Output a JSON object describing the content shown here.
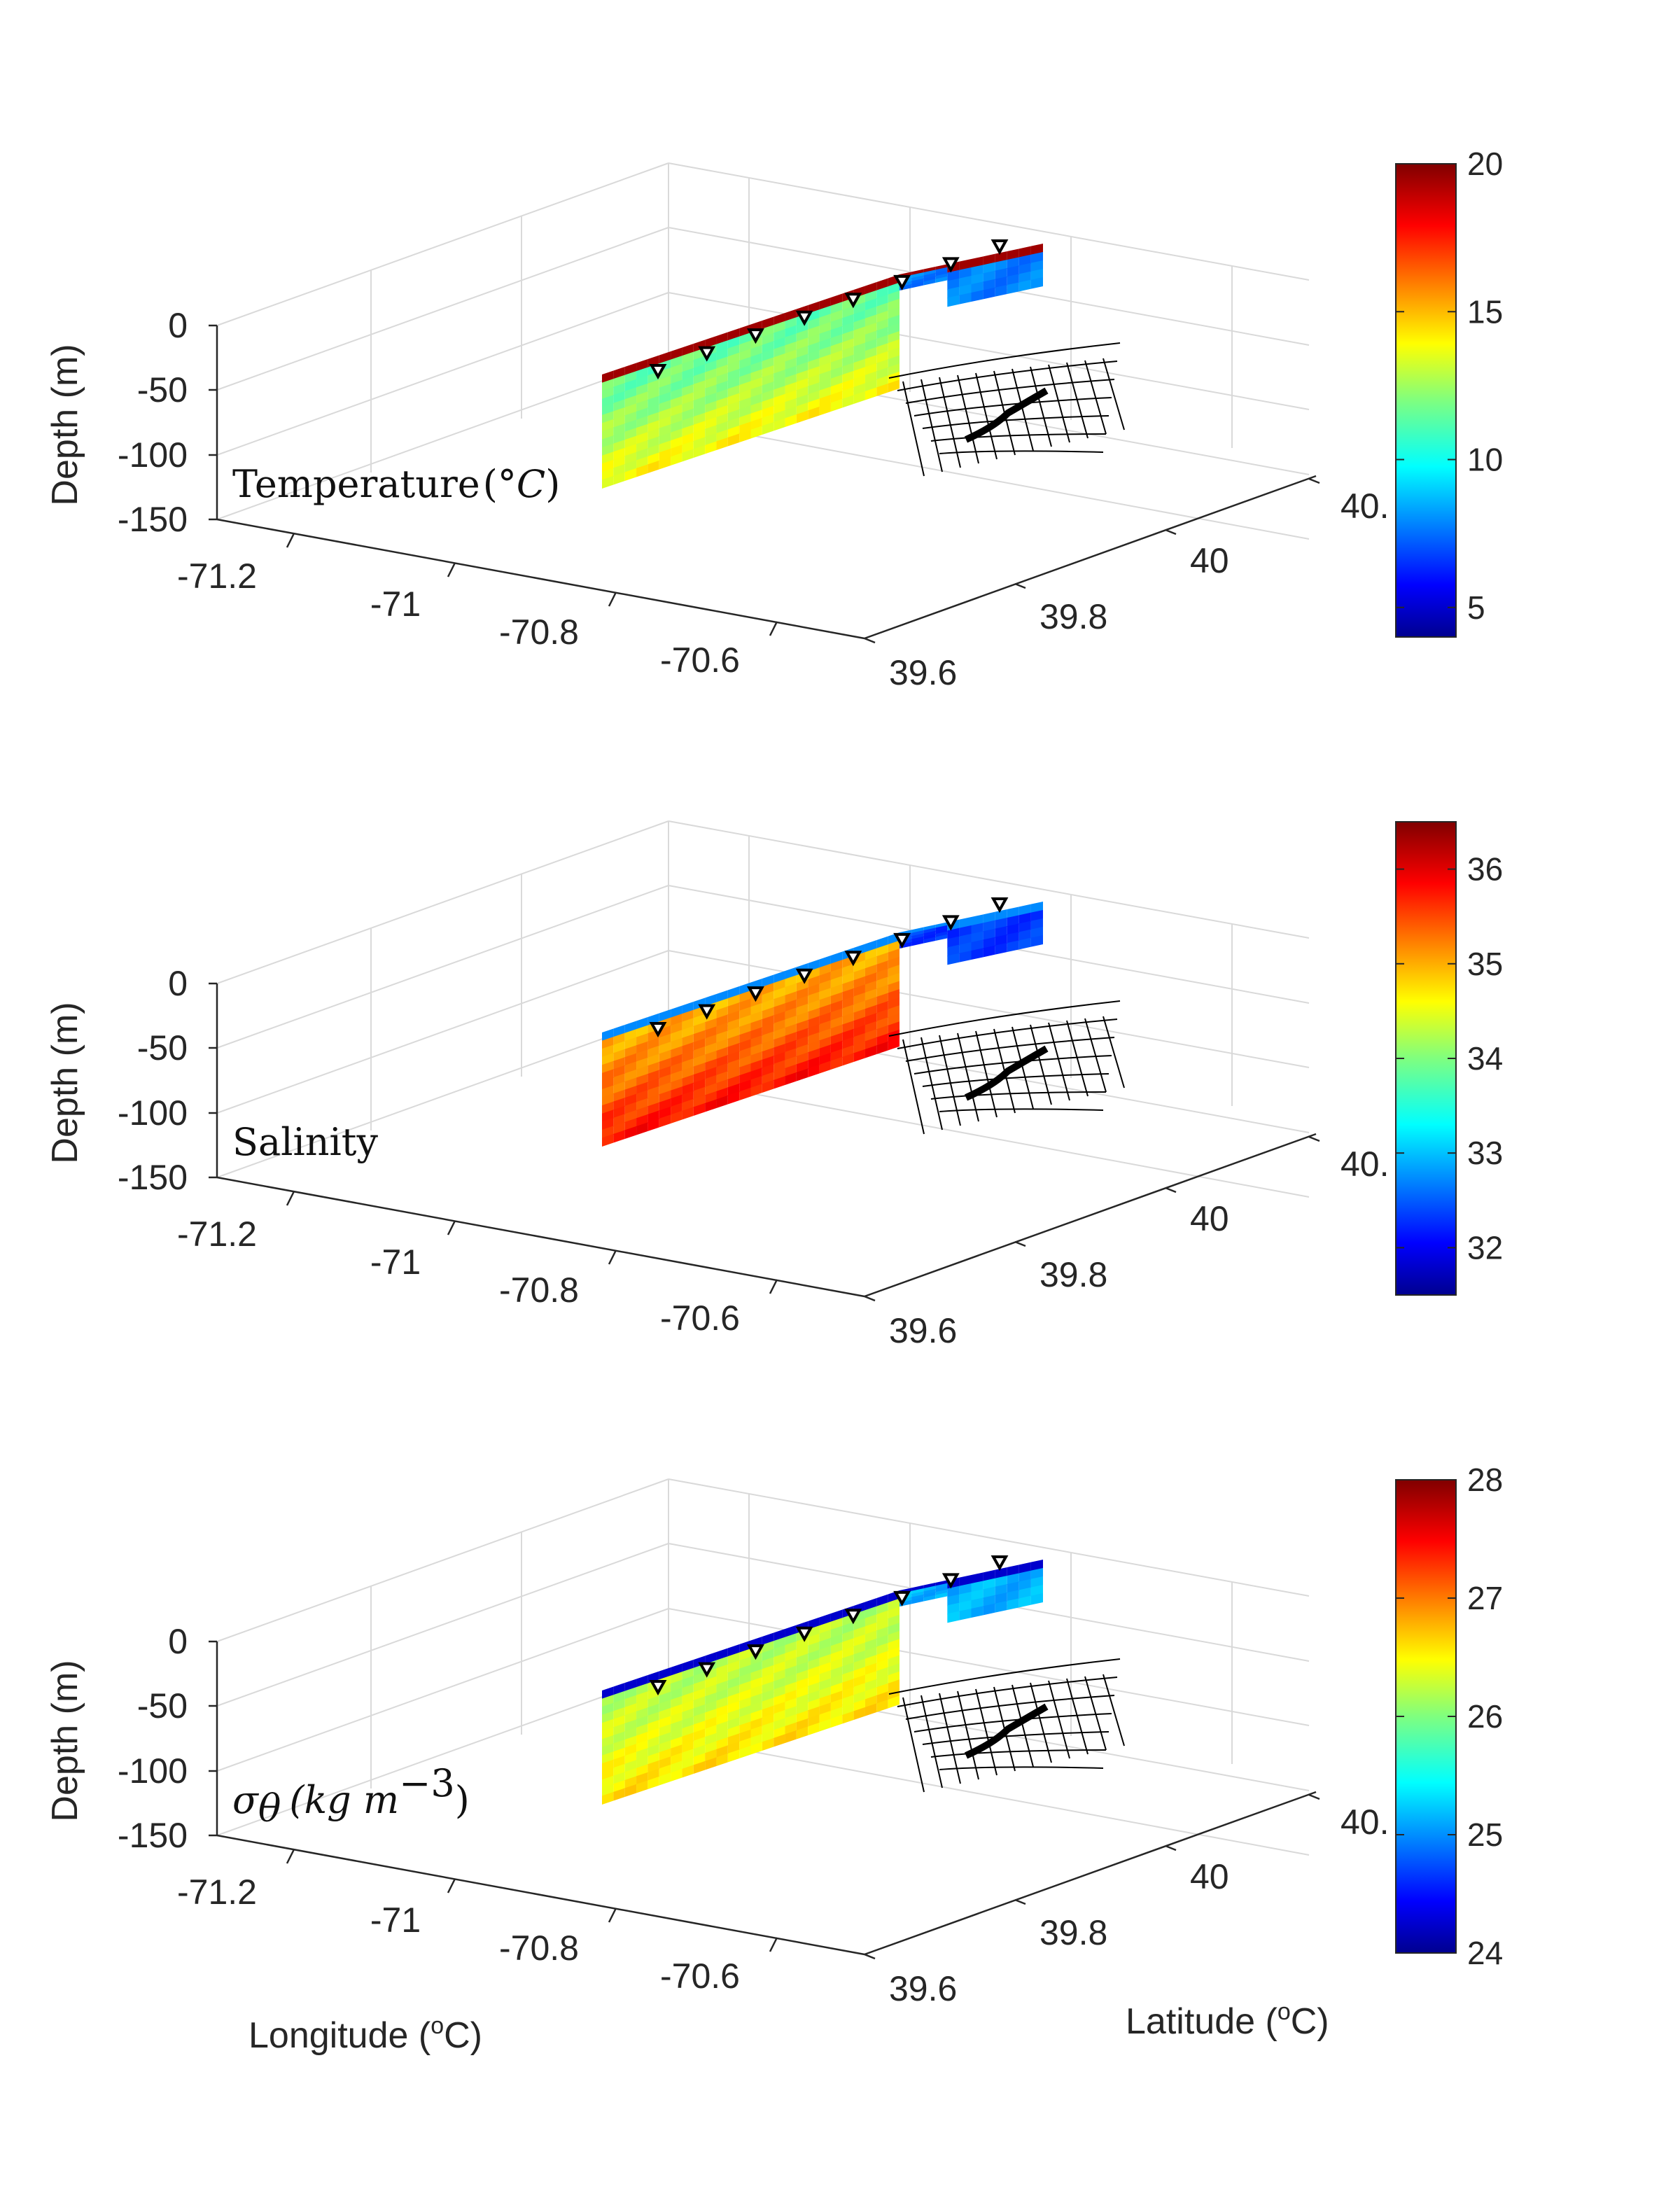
{
  "chart_data": [
    {
      "type": "3d-section",
      "variable_label": "Temperature",
      "unit_symbol": "°",
      "unit_letter": "C",
      "zlabel": "Depth (m)",
      "z_ticks": [
        "0",
        "-50",
        "-100",
        "-150"
      ],
      "x_ticks": [
        "-71.2",
        "-71",
        "-70.8",
        "-70.6"
      ],
      "y_ticks": [
        "39.6",
        "39.8",
        "40",
        "40."
      ],
      "zlim": [
        -150,
        0
      ],
      "colorbar": {
        "min": 4,
        "max": 20,
        "ticks": [
          "5",
          "10",
          "15",
          "20"
        ],
        "tick_values": [
          5,
          10,
          15,
          20
        ]
      },
      "surface_value": 19.5,
      "deep_value": 14.0,
      "interior_value": 11.5,
      "shelf_value": 8.0,
      "colormap": "jet",
      "stations": 8
    },
    {
      "type": "3d-section",
      "variable_label": "Salinity",
      "zlabel": "Depth (m)",
      "z_ticks": [
        "0",
        "-50",
        "-100",
        "-150"
      ],
      "x_ticks": [
        "-71.2",
        "-71",
        "-70.8",
        "-70.6"
      ],
      "y_ticks": [
        "39.6",
        "39.8",
        "40",
        "40."
      ],
      "zlim": [
        -150,
        0
      ],
      "colorbar": {
        "min": 31.5,
        "max": 36.5,
        "ticks": [
          "32",
          "33",
          "34",
          "35",
          "36"
        ],
        "tick_values": [
          32,
          33,
          34,
          35,
          36
        ]
      },
      "surface_value": 32.8,
      "deep_value": 35.8,
      "interior_value": 35.0,
      "shelf_value": 32.4,
      "colormap": "jet",
      "stations": 8
    },
    {
      "type": "3d-section",
      "variable_label": "σθ (kg m⁻³)",
      "zlabel": "Depth (m)",
      "z_ticks": [
        "0",
        "-50",
        "-100",
        "-150"
      ],
      "x_ticks": [
        "-71.2",
        "-71",
        "-70.8",
        "-70.6"
      ],
      "y_ticks": [
        "39.6",
        "39.8",
        "40",
        "40."
      ],
      "zlim": [
        -150,
        0
      ],
      "colorbar": {
        "min": 24,
        "max": 28,
        "ticks": [
          "24",
          "25",
          "26",
          "27",
          "28"
        ],
        "tick_values": [
          24,
          25,
          26,
          27,
          28
        ]
      },
      "surface_value": 24.3,
      "deep_value": 26.6,
      "interior_value": 26.2,
      "shelf_value": 25.2,
      "colormap": "jet",
      "stations": 8
    }
  ],
  "xlabel": "Longitude (°C)",
  "ylabel": "Latitude (°C)",
  "xlabel_prefix": "Longitude (",
  "xlabel_sup": "o",
  "xlabel_suffix": "C)",
  "ylabel_prefix": "Latitude (",
  "ylabel_sup": "o",
  "ylabel_suffix": "C)",
  "title_sigma": "σ",
  "title_theta": "θ",
  "title_units": "(kg m",
  "title_exp": "−3",
  "title_close": ")"
}
